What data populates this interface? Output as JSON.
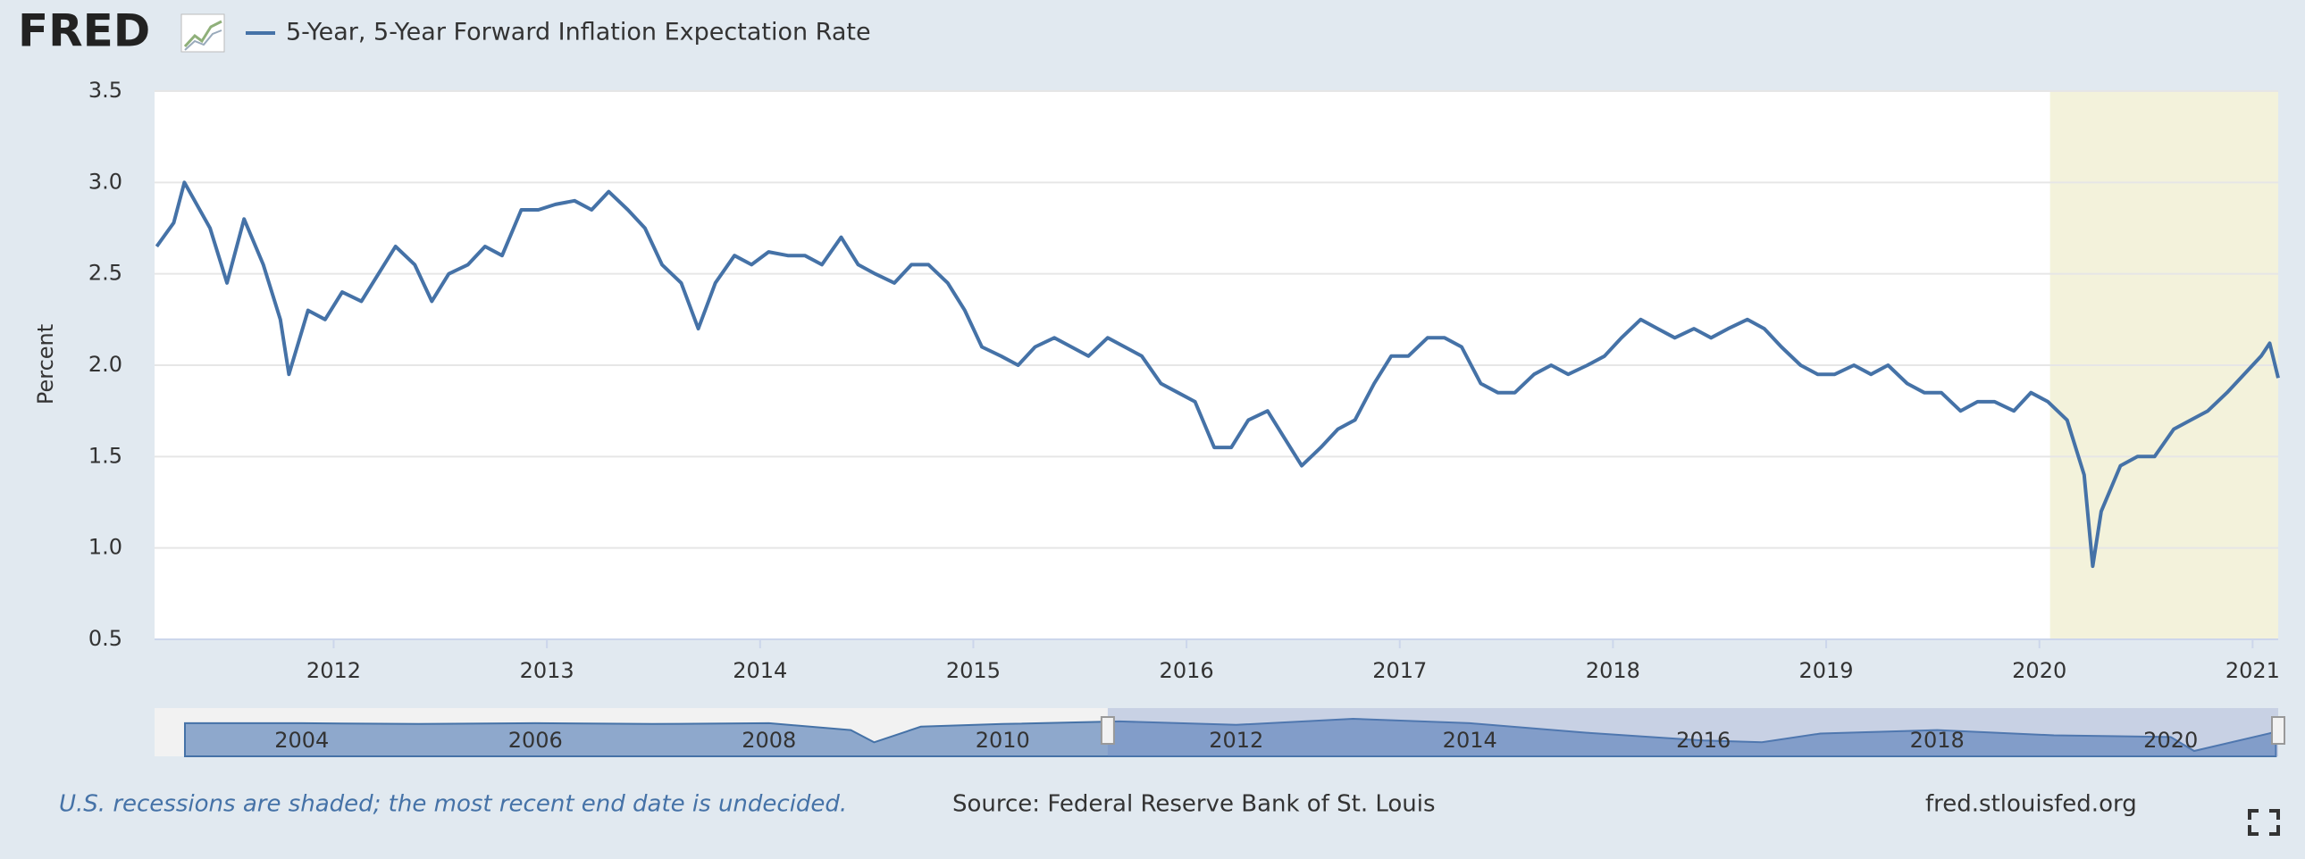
{
  "chart_data": {
    "type": "line",
    "logo": "FRED",
    "y_label": "Percent",
    "note": "U.S. recessions are shaded; the most recent end date is undecided.",
    "source": "Source: Federal Reserve Bank of St. Louis",
    "url": "fred.stlouisfed.org",
    "xlim": [
      2011.16,
      2021.12
    ],
    "xticks": [
      2012,
      2013,
      2014,
      2015,
      2016,
      2017,
      2018,
      2019,
      2020,
      2021
    ],
    "ylim": [
      0.5,
      3.5
    ],
    "yticks": [
      0.5,
      {
        "value": 1,
        "label": "1.0"
      },
      1.5,
      {
        "value": 2,
        "label": "2.0"
      },
      2.5,
      {
        "value": 3,
        "label": "3.0"
      },
      3.5
    ],
    "grid": true,
    "shaded": [
      2020.05,
      2021.12
    ],
    "x": [
      2011.17,
      2011.25,
      2011.3,
      2011.42,
      2011.5,
      2011.58,
      2011.67,
      2011.75,
      2011.79,
      2011.88,
      2011.96,
      2012.04,
      2012.13,
      2012.21,
      2012.29,
      2012.38,
      2012.46,
      2012.54,
      2012.63,
      2012.71,
      2012.79,
      2012.88,
      2012.96,
      2013.04,
      2013.13,
      2013.21,
      2013.29,
      2013.38,
      2013.46,
      2013.54,
      2013.63,
      2013.71,
      2013.79,
      2013.88,
      2013.96,
      2014.04,
      2014.13,
      2014.21,
      2014.29,
      2014.38,
      2014.46,
      2014.54,
      2014.63,
      2014.71,
      2014.79,
      2014.88,
      2014.96,
      2015.04,
      2015.13,
      2015.21,
      2015.29,
      2015.38,
      2015.46,
      2015.54,
      2015.63,
      2015.71,
      2015.79,
      2015.88,
      2015.96,
      2016.04,
      2016.13,
      2016.21,
      2016.29,
      2016.38,
      2016.46,
      2016.54,
      2016.63,
      2016.71,
      2016.79,
      2016.88,
      2016.96,
      2017.04,
      2017.13,
      2017.21,
      2017.29,
      2017.38,
      2017.46,
      2017.54,
      2017.63,
      2017.71,
      2017.79,
      2017.88,
      2017.96,
      2018.04,
      2018.13,
      2018.21,
      2018.29,
      2018.38,
      2018.46,
      2018.54,
      2018.63,
      2018.71,
      2018.79,
      2018.88,
      2018.96,
      2019.04,
      2019.13,
      2019.21,
      2019.29,
      2019.38,
      2019.46,
      2019.54,
      2019.63,
      2019.71,
      2019.79,
      2019.88,
      2019.96,
      2020.04,
      2020.13,
      2020.21,
      2020.25,
      2020.29,
      2020.38,
      2020.46,
      2020.54,
      2020.63,
      2020.71,
      2020.79,
      2020.88,
      2020.96,
      2021.04,
      2021.08,
      2021.12
    ],
    "series": [
      {
        "name": "5-Year, 5-Year Forward Inflation Expectation Rate",
        "color": "#4572a7",
        "values": [
          2.65,
          2.78,
          3.0,
          2.75,
          2.45,
          2.8,
          2.55,
          2.25,
          1.95,
          2.3,
          2.25,
          2.4,
          2.35,
          2.5,
          2.65,
          2.55,
          2.35,
          2.5,
          2.55,
          2.65,
          2.6,
          2.85,
          2.85,
          2.88,
          2.9,
          2.85,
          2.95,
          2.85,
          2.75,
          2.55,
          2.45,
          2.2,
          2.45,
          2.6,
          2.55,
          2.62,
          2.6,
          2.6,
          2.55,
          2.7,
          2.55,
          2.5,
          2.45,
          2.55,
          2.55,
          2.45,
          2.3,
          2.1,
          2.05,
          2.0,
          2.1,
          2.15,
          2.1,
          2.05,
          2.15,
          2.1,
          2.05,
          1.9,
          1.85,
          1.8,
          1.55,
          1.55,
          1.7,
          1.75,
          1.6,
          1.45,
          1.55,
          1.65,
          1.7,
          1.9,
          2.05,
          2.05,
          2.15,
          2.15,
          2.1,
          1.9,
          1.85,
          1.85,
          1.95,
          2.0,
          1.95,
          2.0,
          2.05,
          2.15,
          2.25,
          2.2,
          2.15,
          2.2,
          2.15,
          2.2,
          2.25,
          2.2,
          2.1,
          2.0,
          1.95,
          1.95,
          2.0,
          1.95,
          2.0,
          1.9,
          1.85,
          1.85,
          1.75,
          1.8,
          1.8,
          1.75,
          1.85,
          1.8,
          1.7,
          1.4,
          0.9,
          1.2,
          1.45,
          1.5,
          1.5,
          1.65,
          1.7,
          1.75,
          1.85,
          1.95,
          2.05,
          2.12,
          1.93
        ]
      }
    ],
    "navigator": {
      "xlim": [
        2002.74,
        2020.92
      ],
      "xticks": [
        2004,
        2006,
        2008,
        2010,
        2012,
        2014,
        2016,
        2018,
        2020
      ],
      "selection": [
        2010.9,
        2020.92
      ],
      "x": [
        2003,
        2004,
        2005,
        2006,
        2007,
        2008,
        2008.7,
        2008.9,
        2009.3,
        2010,
        2011,
        2012,
        2013,
        2014,
        2015,
        2016,
        2016.5,
        2017,
        2018,
        2019,
        2020,
        2020.2,
        2020.9
      ],
      "values": [
        2.6,
        2.6,
        2.55,
        2.6,
        2.55,
        2.6,
        2.2,
        1.5,
        2.4,
        2.55,
        2.7,
        2.5,
        2.85,
        2.6,
        2.05,
        1.6,
        1.5,
        2.0,
        2.2,
        1.9,
        1.8,
        1.0,
        2.1
      ]
    }
  }
}
